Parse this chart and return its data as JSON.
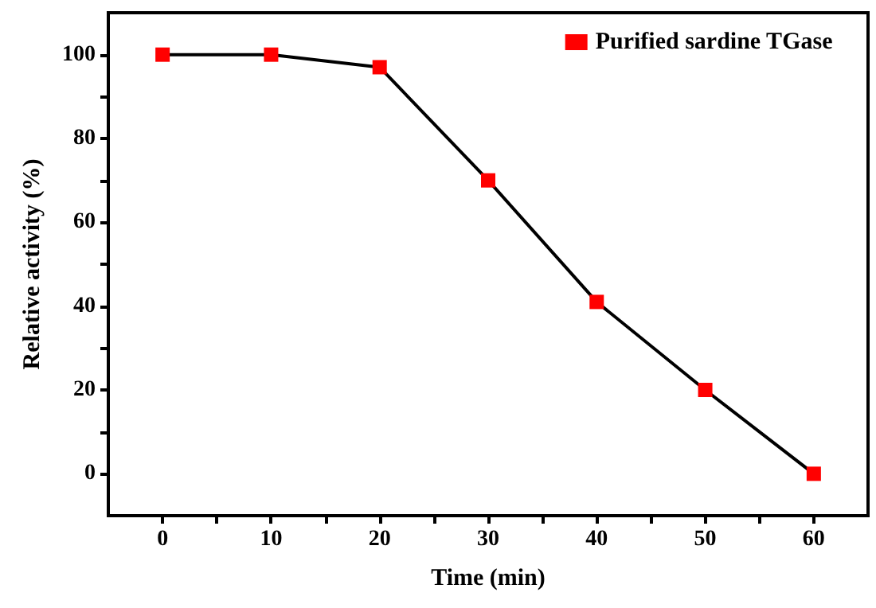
{
  "chart_data": {
    "type": "line",
    "xlabel": "Time (min)",
    "ylabel": "Relative activity (%)",
    "x": [
      0,
      10,
      20,
      30,
      40,
      50,
      60
    ],
    "series": [
      {
        "name": "Purified sardine TGase",
        "color": "#ff0000",
        "values": [
          100,
          100,
          97,
          70,
          41,
          20,
          0
        ]
      }
    ],
    "xlim": [
      -5,
      65
    ],
    "xticks": [
      0,
      {
        "value": 5,
        "label": null
      },
      10,
      {
        "value": 15,
        "label": null
      },
      20,
      {
        "value": 25,
        "label": null
      },
      30,
      {
        "value": 35,
        "label": null
      },
      40,
      {
        "value": 45,
        "label": null
      },
      50,
      {
        "value": 55,
        "label": null
      },
      60
    ],
    "ylim": [
      -10,
      110
    ],
    "yticks": [
      0,
      {
        "value": 10,
        "label": null
      },
      20,
      {
        "value": 30,
        "label": null
      },
      40,
      {
        "value": 50,
        "label": null
      },
      60,
      {
        "value": 70,
        "label": null
      },
      80,
      {
        "value": 90,
        "label": null
      },
      100
    ],
    "grid": false,
    "legend": "top right",
    "marker": "square",
    "line_style": "solid"
  }
}
